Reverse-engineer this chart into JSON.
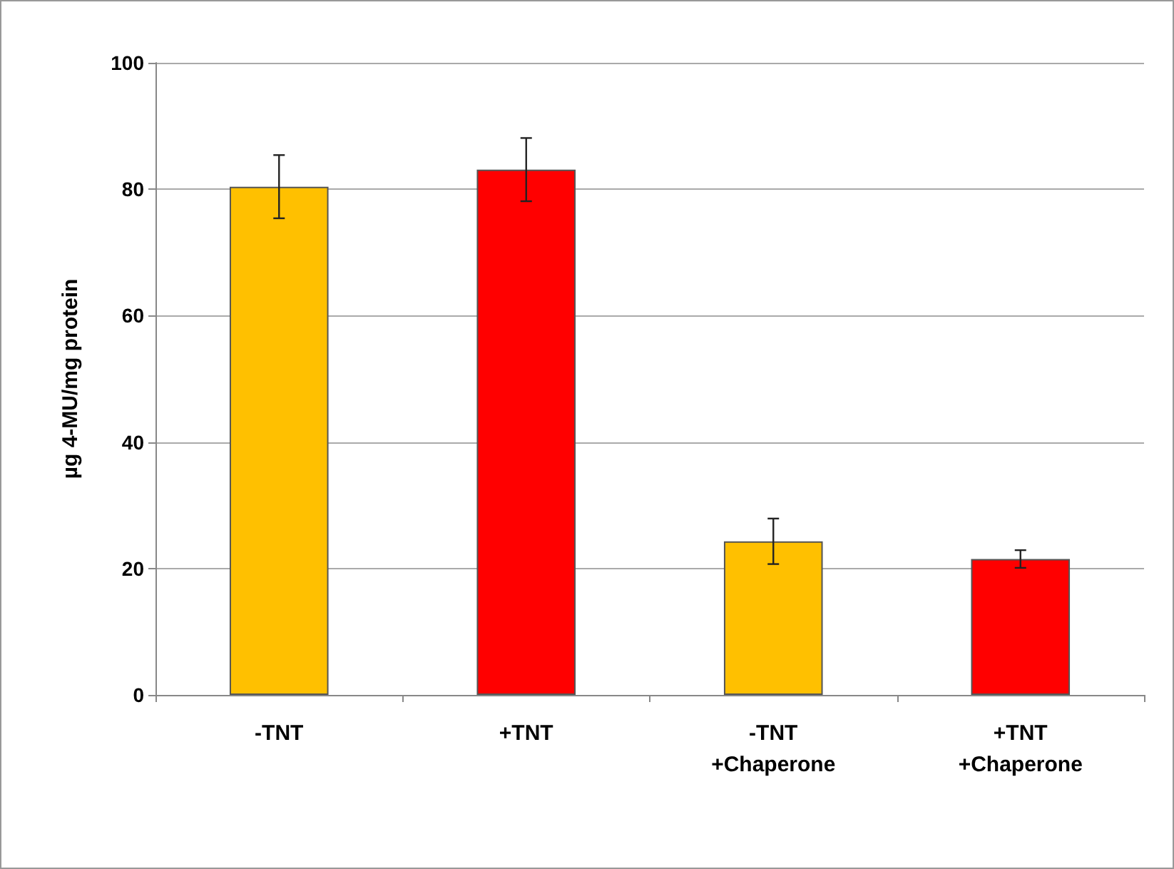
{
  "chart_data": {
    "type": "bar",
    "ylabel": "µg 4-MU/mg protein",
    "categories": [
      "-TNT",
      "+TNT",
      "-TNT\n+Chaperone",
      "+TNT\n+Chaperone"
    ],
    "values": [
      80.4,
      83.1,
      24.3,
      21.5
    ],
    "colors": [
      "#ffc000",
      "#ff0000",
      "#ffc000",
      "#ff0000"
    ],
    "errors": [
      5,
      5,
      3.6,
      1.4
    ],
    "ylim": [
      0,
      100
    ],
    "yticks": [
      0,
      20,
      40,
      60,
      80,
      100
    ],
    "grid": "y"
  }
}
